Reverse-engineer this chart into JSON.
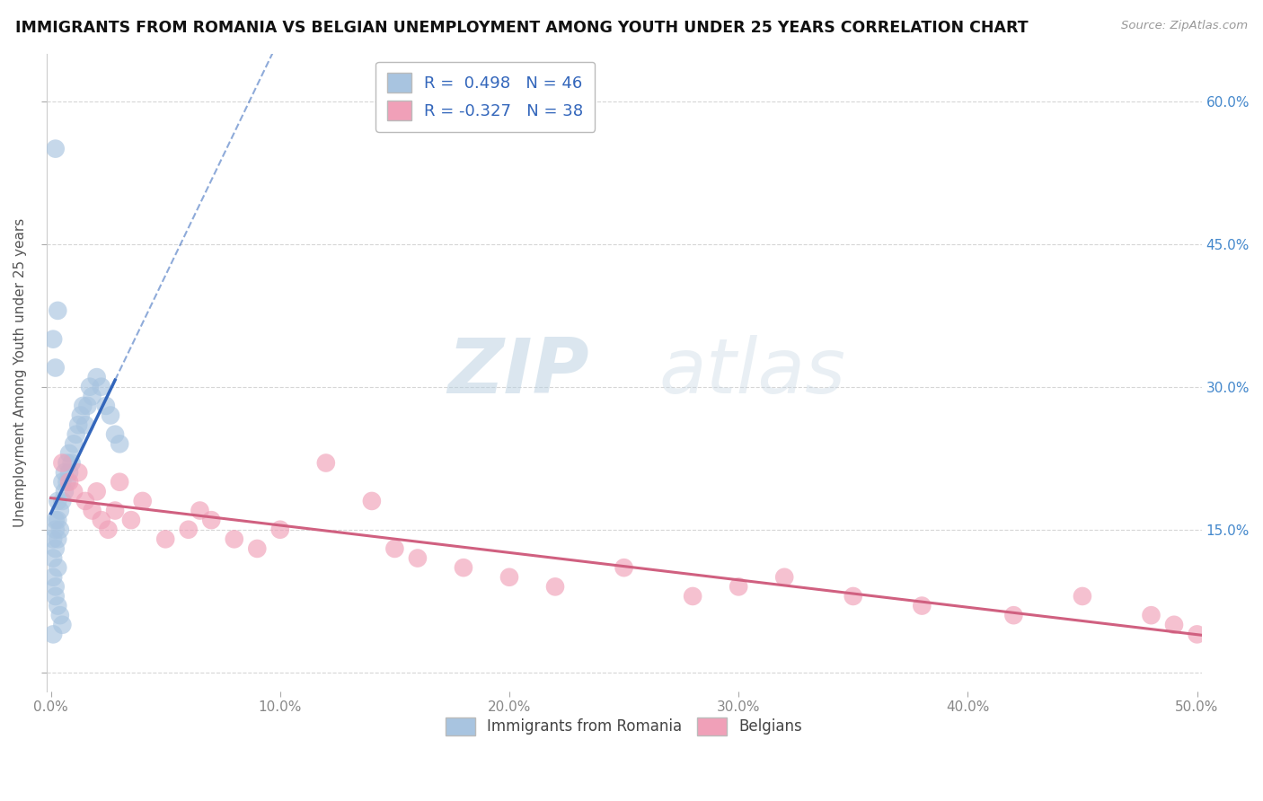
{
  "title": "IMMIGRANTS FROM ROMANIA VS BELGIAN UNEMPLOYMENT AMONG YOUTH UNDER 25 YEARS CORRELATION CHART",
  "source": "Source: ZipAtlas.com",
  "ylabel": "Unemployment Among Youth under 25 years",
  "xlim": [
    -0.002,
    0.502
  ],
  "ylim": [
    -0.02,
    0.65
  ],
  "xticks": [
    0.0,
    0.1,
    0.2,
    0.3,
    0.4,
    0.5
  ],
  "xticklabels": [
    "0.0%",
    "10.0%",
    "20.0%",
    "30.0%",
    "40.0%",
    "50.0%"
  ],
  "yticks": [
    0.0,
    0.15,
    0.3,
    0.45,
    0.6
  ],
  "right_yticklabels": [
    "",
    "15.0%",
    "30.0%",
    "45.0%",
    "60.0%"
  ],
  "romania_R": 0.498,
  "romania_N": 46,
  "belgian_R": -0.327,
  "belgian_N": 38,
  "romania_color": "#a8c4e0",
  "romanian_line_color": "#3366bb",
  "belgian_color": "#f0a0b8",
  "belgian_line_color": "#d06080",
  "legend_text_color": "#3366bb",
  "watermark_zip": "ZIP",
  "watermark_atlas": "atlas",
  "romania_scatter_x": [
    0.001,
    0.001,
    0.002,
    0.002,
    0.002,
    0.003,
    0.003,
    0.003,
    0.004,
    0.004,
    0.005,
    0.005,
    0.006,
    0.006,
    0.007,
    0.007,
    0.008,
    0.008,
    0.009,
    0.01,
    0.011,
    0.012,
    0.013,
    0.014,
    0.015,
    0.016,
    0.017,
    0.018,
    0.02,
    0.022,
    0.024,
    0.026,
    0.028,
    0.03,
    0.001,
    0.002,
    0.003,
    0.004,
    0.005,
    0.002,
    0.003,
    0.001,
    0.002,
    0.001,
    0.003,
    0.002
  ],
  "romania_scatter_y": [
    0.12,
    0.14,
    0.13,
    0.15,
    0.16,
    0.14,
    0.16,
    0.18,
    0.15,
    0.17,
    0.18,
    0.2,
    0.19,
    0.21,
    0.2,
    0.22,
    0.21,
    0.23,
    0.22,
    0.24,
    0.25,
    0.26,
    0.27,
    0.28,
    0.26,
    0.28,
    0.3,
    0.29,
    0.31,
    0.3,
    0.28,
    0.27,
    0.25,
    0.24,
    0.1,
    0.08,
    0.07,
    0.06,
    0.05,
    0.55,
    0.38,
    0.35,
    0.32,
    0.04,
    0.11,
    0.09
  ],
  "belgian_scatter_x": [
    0.005,
    0.008,
    0.01,
    0.012,
    0.015,
    0.018,
    0.02,
    0.022,
    0.025,
    0.028,
    0.03,
    0.035,
    0.04,
    0.05,
    0.06,
    0.065,
    0.07,
    0.08,
    0.09,
    0.1,
    0.12,
    0.14,
    0.15,
    0.16,
    0.18,
    0.2,
    0.22,
    0.25,
    0.28,
    0.3,
    0.32,
    0.35,
    0.38,
    0.42,
    0.45,
    0.48,
    0.49,
    0.5
  ],
  "belgian_scatter_y": [
    0.22,
    0.2,
    0.19,
    0.21,
    0.18,
    0.17,
    0.19,
    0.16,
    0.15,
    0.17,
    0.2,
    0.16,
    0.18,
    0.14,
    0.15,
    0.17,
    0.16,
    0.14,
    0.13,
    0.15,
    0.22,
    0.18,
    0.13,
    0.12,
    0.11,
    0.1,
    0.09,
    0.11,
    0.08,
    0.09,
    0.1,
    0.08,
    0.07,
    0.06,
    0.08,
    0.06,
    0.05,
    0.04
  ]
}
